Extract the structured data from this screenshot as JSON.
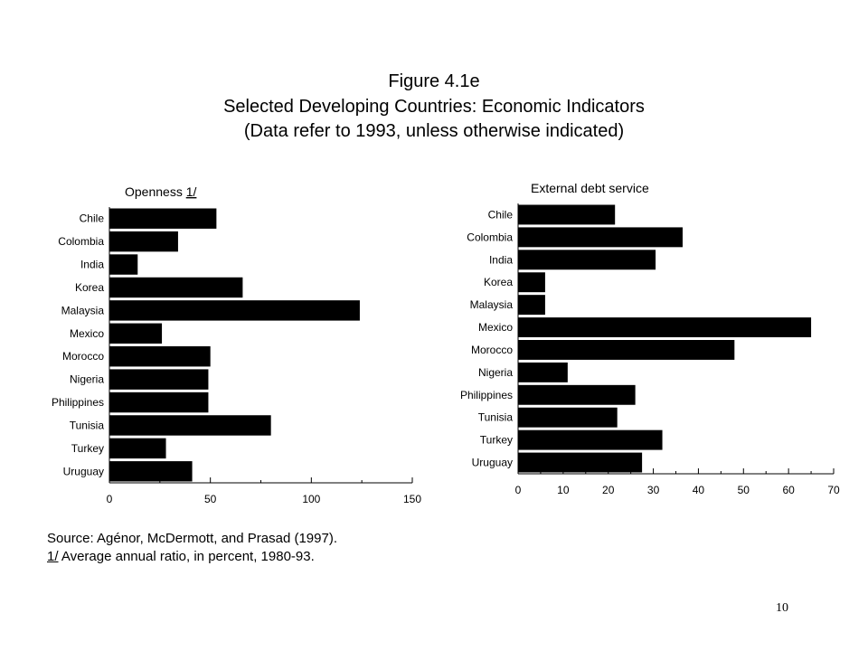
{
  "title": {
    "line1": "Figure 4.1e",
    "line2": "Selected Developing Countries: Economic Indicators",
    "line3": "(Data refer to 1993, unless otherwise indicated)"
  },
  "chart_data": [
    {
      "type": "bar",
      "orientation": "horizontal",
      "title": "Openness",
      "title_note": "1/",
      "categories": [
        "Chile",
        "Colombia",
        "India",
        "Korea",
        "Malaysia",
        "Mexico",
        "Morocco",
        "Nigeria",
        "Philippines",
        "Tunisia",
        "Turkey",
        "Uruguay"
      ],
      "values": [
        53,
        34,
        14,
        66,
        124,
        26,
        50,
        49,
        49,
        80,
        28,
        41
      ],
      "xlim": [
        0,
        150
      ],
      "xticks": [
        0,
        50,
        100,
        150
      ],
      "grid": false
    },
    {
      "type": "bar",
      "orientation": "horizontal",
      "title": "External debt service",
      "categories": [
        "Chile",
        "Colombia",
        "India",
        "Korea",
        "Malaysia",
        "Mexico",
        "Morocco",
        "Nigeria",
        "Philippines",
        "Tunisia",
        "Turkey",
        "Uruguay"
      ],
      "values": [
        21.5,
        36.5,
        30.5,
        6,
        6,
        65,
        48,
        11,
        26,
        22,
        32,
        27.5
      ],
      "xlim": [
        0,
        70
      ],
      "xticks": [
        0,
        10,
        20,
        30,
        40,
        50,
        60,
        70
      ],
      "grid": false
    }
  ],
  "notes": {
    "source": "Source: Agénor, McDermott, and Prasad (1997).",
    "footnote_mark": "1/",
    "footnote_text": " Average annual ratio, in percent, 1980-93."
  },
  "page_number": "10"
}
